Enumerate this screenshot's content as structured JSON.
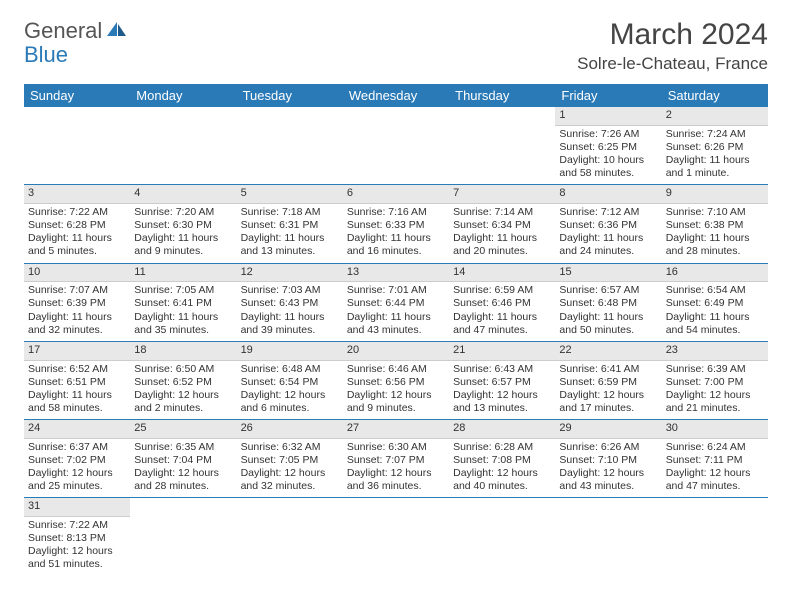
{
  "logo": {
    "general": "General",
    "blue": "Blue"
  },
  "header": {
    "title": "March 2024",
    "location": "Solre-le-Chateau, France"
  },
  "colors": {
    "accent": "#2a7ab8",
    "header_bg": "#2a7ab8",
    "daynum_bg": "#e8e8e8",
    "text": "#333333",
    "bg": "#ffffff"
  },
  "day_headers": [
    "Sunday",
    "Monday",
    "Tuesday",
    "Wednesday",
    "Thursday",
    "Friday",
    "Saturday"
  ],
  "weeks": [
    [
      null,
      null,
      null,
      null,
      null,
      {
        "n": "1",
        "sunrise": "Sunrise: 7:26 AM",
        "sunset": "Sunset: 6:25 PM",
        "daylight": "Daylight: 10 hours and 58 minutes."
      },
      {
        "n": "2",
        "sunrise": "Sunrise: 7:24 AM",
        "sunset": "Sunset: 6:26 PM",
        "daylight": "Daylight: 11 hours and 1 minute."
      }
    ],
    [
      {
        "n": "3",
        "sunrise": "Sunrise: 7:22 AM",
        "sunset": "Sunset: 6:28 PM",
        "daylight": "Daylight: 11 hours and 5 minutes."
      },
      {
        "n": "4",
        "sunrise": "Sunrise: 7:20 AM",
        "sunset": "Sunset: 6:30 PM",
        "daylight": "Daylight: 11 hours and 9 minutes."
      },
      {
        "n": "5",
        "sunrise": "Sunrise: 7:18 AM",
        "sunset": "Sunset: 6:31 PM",
        "daylight": "Daylight: 11 hours and 13 minutes."
      },
      {
        "n": "6",
        "sunrise": "Sunrise: 7:16 AM",
        "sunset": "Sunset: 6:33 PM",
        "daylight": "Daylight: 11 hours and 16 minutes."
      },
      {
        "n": "7",
        "sunrise": "Sunrise: 7:14 AM",
        "sunset": "Sunset: 6:34 PM",
        "daylight": "Daylight: 11 hours and 20 minutes."
      },
      {
        "n": "8",
        "sunrise": "Sunrise: 7:12 AM",
        "sunset": "Sunset: 6:36 PM",
        "daylight": "Daylight: 11 hours and 24 minutes."
      },
      {
        "n": "9",
        "sunrise": "Sunrise: 7:10 AM",
        "sunset": "Sunset: 6:38 PM",
        "daylight": "Daylight: 11 hours and 28 minutes."
      }
    ],
    [
      {
        "n": "10",
        "sunrise": "Sunrise: 7:07 AM",
        "sunset": "Sunset: 6:39 PM",
        "daylight": "Daylight: 11 hours and 32 minutes."
      },
      {
        "n": "11",
        "sunrise": "Sunrise: 7:05 AM",
        "sunset": "Sunset: 6:41 PM",
        "daylight": "Daylight: 11 hours and 35 minutes."
      },
      {
        "n": "12",
        "sunrise": "Sunrise: 7:03 AM",
        "sunset": "Sunset: 6:43 PM",
        "daylight": "Daylight: 11 hours and 39 minutes."
      },
      {
        "n": "13",
        "sunrise": "Sunrise: 7:01 AM",
        "sunset": "Sunset: 6:44 PM",
        "daylight": "Daylight: 11 hours and 43 minutes."
      },
      {
        "n": "14",
        "sunrise": "Sunrise: 6:59 AM",
        "sunset": "Sunset: 6:46 PM",
        "daylight": "Daylight: 11 hours and 47 minutes."
      },
      {
        "n": "15",
        "sunrise": "Sunrise: 6:57 AM",
        "sunset": "Sunset: 6:48 PM",
        "daylight": "Daylight: 11 hours and 50 minutes."
      },
      {
        "n": "16",
        "sunrise": "Sunrise: 6:54 AM",
        "sunset": "Sunset: 6:49 PM",
        "daylight": "Daylight: 11 hours and 54 minutes."
      }
    ],
    [
      {
        "n": "17",
        "sunrise": "Sunrise: 6:52 AM",
        "sunset": "Sunset: 6:51 PM",
        "daylight": "Daylight: 11 hours and 58 minutes."
      },
      {
        "n": "18",
        "sunrise": "Sunrise: 6:50 AM",
        "sunset": "Sunset: 6:52 PM",
        "daylight": "Daylight: 12 hours and 2 minutes."
      },
      {
        "n": "19",
        "sunrise": "Sunrise: 6:48 AM",
        "sunset": "Sunset: 6:54 PM",
        "daylight": "Daylight: 12 hours and 6 minutes."
      },
      {
        "n": "20",
        "sunrise": "Sunrise: 6:46 AM",
        "sunset": "Sunset: 6:56 PM",
        "daylight": "Daylight: 12 hours and 9 minutes."
      },
      {
        "n": "21",
        "sunrise": "Sunrise: 6:43 AM",
        "sunset": "Sunset: 6:57 PM",
        "daylight": "Daylight: 12 hours and 13 minutes."
      },
      {
        "n": "22",
        "sunrise": "Sunrise: 6:41 AM",
        "sunset": "Sunset: 6:59 PM",
        "daylight": "Daylight: 12 hours and 17 minutes."
      },
      {
        "n": "23",
        "sunrise": "Sunrise: 6:39 AM",
        "sunset": "Sunset: 7:00 PM",
        "daylight": "Daylight: 12 hours and 21 minutes."
      }
    ],
    [
      {
        "n": "24",
        "sunrise": "Sunrise: 6:37 AM",
        "sunset": "Sunset: 7:02 PM",
        "daylight": "Daylight: 12 hours and 25 minutes."
      },
      {
        "n": "25",
        "sunrise": "Sunrise: 6:35 AM",
        "sunset": "Sunset: 7:04 PM",
        "daylight": "Daylight: 12 hours and 28 minutes."
      },
      {
        "n": "26",
        "sunrise": "Sunrise: 6:32 AM",
        "sunset": "Sunset: 7:05 PM",
        "daylight": "Daylight: 12 hours and 32 minutes."
      },
      {
        "n": "27",
        "sunrise": "Sunrise: 6:30 AM",
        "sunset": "Sunset: 7:07 PM",
        "daylight": "Daylight: 12 hours and 36 minutes."
      },
      {
        "n": "28",
        "sunrise": "Sunrise: 6:28 AM",
        "sunset": "Sunset: 7:08 PM",
        "daylight": "Daylight: 12 hours and 40 minutes."
      },
      {
        "n": "29",
        "sunrise": "Sunrise: 6:26 AM",
        "sunset": "Sunset: 7:10 PM",
        "daylight": "Daylight: 12 hours and 43 minutes."
      },
      {
        "n": "30",
        "sunrise": "Sunrise: 6:24 AM",
        "sunset": "Sunset: 7:11 PM",
        "daylight": "Daylight: 12 hours and 47 minutes."
      }
    ],
    [
      {
        "n": "31",
        "sunrise": "Sunrise: 7:22 AM",
        "sunset": "Sunset: 8:13 PM",
        "daylight": "Daylight: 12 hours and 51 minutes."
      },
      null,
      null,
      null,
      null,
      null,
      null
    ]
  ]
}
